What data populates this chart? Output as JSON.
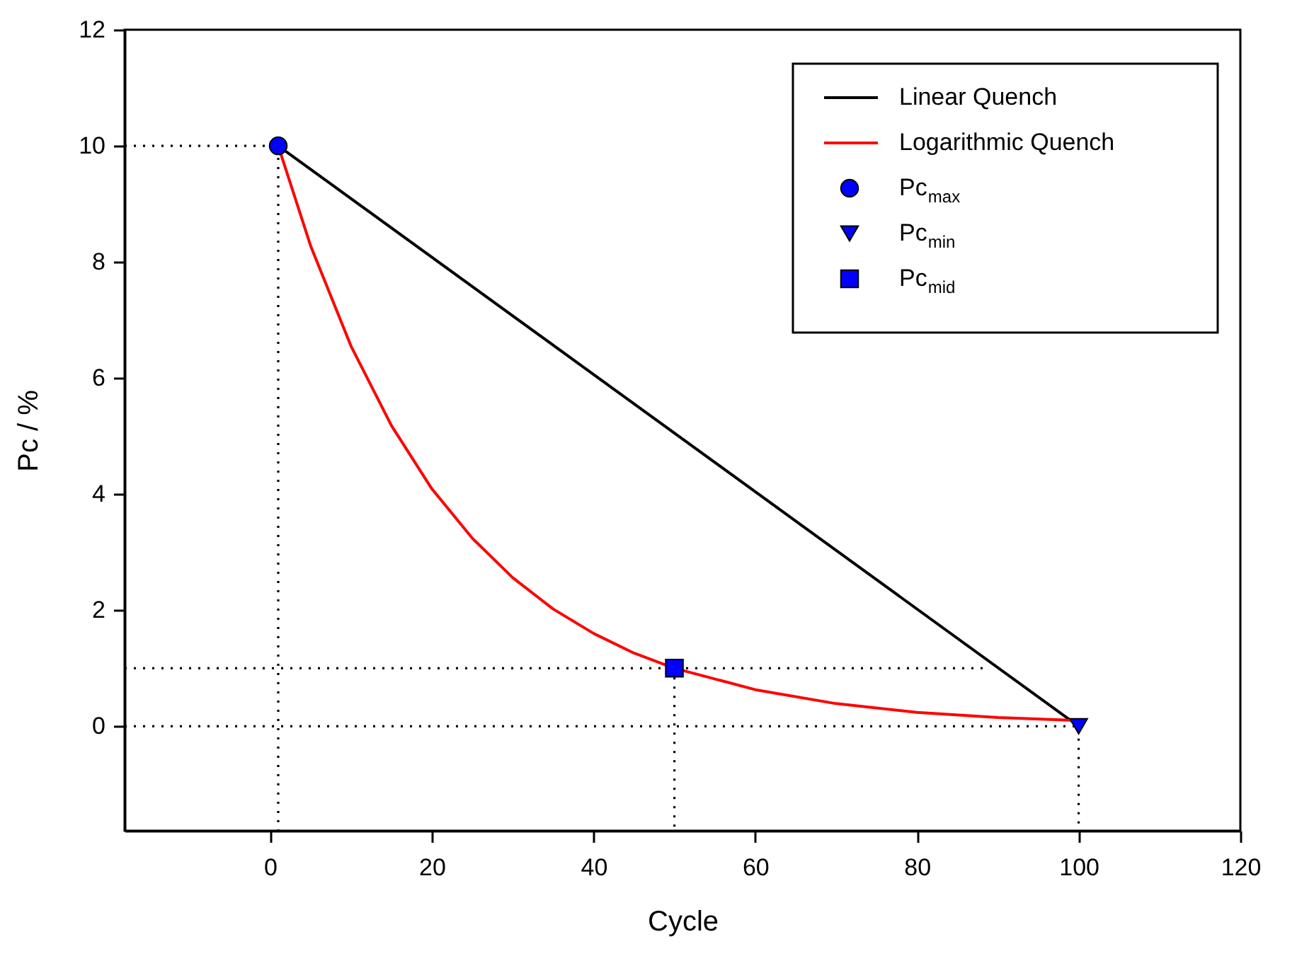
{
  "chart_data": {
    "type": "line",
    "xlabel": "Cycle",
    "ylabel": "Pc / %",
    "xlim": [
      -18,
      120
    ],
    "ylim": [
      -1.8,
      12
    ],
    "xticks": [
      0,
      20,
      40,
      60,
      80,
      100,
      120
    ],
    "yticks": [
      0,
      2,
      4,
      6,
      8,
      10,
      12
    ],
    "legend": "top right",
    "grid": false,
    "series": [
      {
        "name": "Linear Quench",
        "color": "#000000",
        "x": [
          1,
          100
        ],
        "values": [
          10,
          0
        ]
      },
      {
        "name": "Logarithmic Quench",
        "color": "#ff0000",
        "x": [
          1,
          5,
          10,
          15,
          20,
          25,
          30,
          35,
          40,
          45,
          50,
          60,
          70,
          80,
          90,
          100
        ],
        "values": [
          10,
          8.28,
          6.55,
          5.18,
          4.09,
          3.24,
          2.56,
          2.02,
          1.6,
          1.26,
          1,
          0.63,
          0.39,
          0.24,
          0.15,
          0.1
        ]
      },
      {
        "name": "Pc$_{max}$",
        "type": "scatter",
        "marker": "circle",
        "color": "#0000ff",
        "x": [
          1
        ],
        "values": [
          10
        ]
      },
      {
        "name": "Pc$_{min}$",
        "type": "scatter",
        "marker": "triangle_down",
        "color": "#0000ff",
        "x": [
          100
        ],
        "values": [
          0
        ]
      },
      {
        "name": "Pc$_{mid}$",
        "type": "scatter",
        "marker": "square",
        "color": "#0000ff",
        "x": [
          50
        ],
        "values": [
          1
        ]
      },
      {
        "type": "line",
        "line_style": "dotted",
        "color": "#000000",
        "x": [
          -18,
          1,
          1
        ],
        "values": [
          10,
          10,
          -1.8
        ]
      },
      {
        "type": "line",
        "line_style": "dotted",
        "color": "#000000",
        "x": [
          -18,
          89
        ],
        "values": [
          1,
          1
        ]
      },
      {
        "type": "line",
        "line_style": "dotted",
        "color": "#000000",
        "x": [
          50,
          50
        ],
        "values": [
          1,
          -1.8
        ]
      },
      {
        "type": "line",
        "line_style": "dotted",
        "color": "#000000",
        "x": [
          -18,
          100,
          100
        ],
        "values": [
          0,
          0,
          -1.8
        ]
      }
    ]
  }
}
